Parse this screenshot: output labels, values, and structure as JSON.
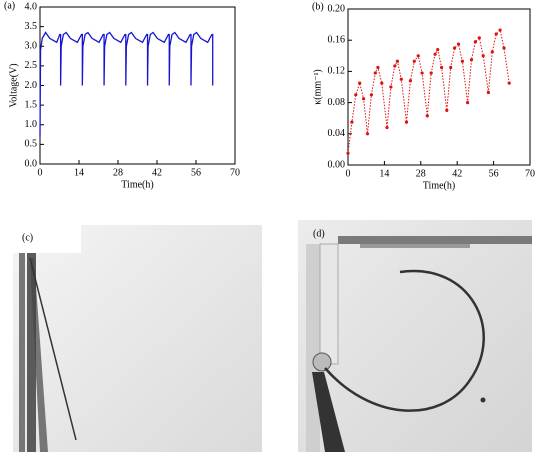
{
  "chart_data": [
    {
      "type": "line",
      "panel_label": "(a)",
      "x_label": "Time(h)",
      "y_label": "Voltage(V)",
      "xlim": [
        0,
        70
      ],
      "xticks": [
        0,
        14,
        28,
        42,
        56,
        70
      ],
      "ylim": [
        0,
        4
      ],
      "yticks": [
        {
          "value": 0,
          "label": "0.0"
        },
        0.5,
        {
          "value": 1,
          "label": "1.0"
        },
        1.5,
        {
          "value": 2,
          "label": "2.0"
        },
        2.5,
        {
          "value": 3,
          "label": "3.0"
        },
        3.5,
        {
          "value": 4,
          "label": "4.0"
        }
      ],
      "x": [
        0,
        0.2,
        0.8,
        2,
        3.5,
        6,
        7.1,
        7.4,
        7.4,
        7.6,
        8.4,
        9.4,
        10.9,
        13.4,
        14.9,
        15.2,
        15.2,
        15.4,
        16.2,
        17.2,
        18.7,
        21.2,
        22.7,
        23,
        23,
        23.2,
        24,
        25,
        26.5,
        29,
        30.5,
        30.8,
        30.8,
        31,
        31.8,
        32.8,
        34.3,
        36.8,
        38.3,
        38.6,
        38.6,
        38.8,
        39.6,
        40.6,
        42.1,
        44.6,
        46.1,
        46.4,
        46.4,
        46.6,
        47.4,
        48.4,
        49.9,
        52.4,
        53.9,
        54.2,
        54.2,
        54.4,
        55.2,
        56.2,
        57.7,
        60.2,
        61.7,
        62,
        62
      ],
      "series": [
        {
          "color": "#1515d0",
          "markers": false,
          "values": [
            0.7,
            2.9,
            3.2,
            3.35,
            3.2,
            3.1,
            3.3,
            3.3,
            2.0,
            3.0,
            3.3,
            3.35,
            3.2,
            3.1,
            3.3,
            3.3,
            2.0,
            3.0,
            3.3,
            3.35,
            3.2,
            3.1,
            3.3,
            3.3,
            2.0,
            3.0,
            3.3,
            3.35,
            3.2,
            3.1,
            3.3,
            3.3,
            2.0,
            3.0,
            3.3,
            3.35,
            3.2,
            3.1,
            3.3,
            3.3,
            2.0,
            3.0,
            3.3,
            3.35,
            3.2,
            3.1,
            3.3,
            3.3,
            2.0,
            3.0,
            3.3,
            3.35,
            3.2,
            3.1,
            3.3,
            3.3,
            2.0,
            3.0,
            3.3,
            3.35,
            3.2,
            3.1,
            3.3,
            3.3,
            2.0
          ]
        }
      ]
    },
    {
      "type": "line",
      "panel_label": "(b)",
      "x_label": "Time(h)",
      "y_label": "κ(mm⁻¹)",
      "xlim": [
        0,
        70
      ],
      "xticks": [
        0,
        14,
        28,
        42,
        56,
        70
      ],
      "ylim": [
        0,
        0.2
      ],
      "yticks": [
        {
          "value": 0,
          "label": "0.00"
        },
        0.04,
        0.08,
        0.12,
        0.16,
        {
          "value": 0.2,
          "label": "0.20"
        }
      ],
      "x": [
        0,
        1.5,
        3,
        4.5,
        6,
        7.5,
        9,
        10.5,
        11.5,
        13,
        15,
        16.5,
        18,
        19,
        20.5,
        22.5,
        24,
        25.5,
        27,
        28.5,
        30.5,
        32,
        33.5,
        34.5,
        36,
        38,
        39.5,
        41,
        42.5,
        44,
        46,
        47.5,
        49,
        50.5,
        52,
        54,
        55.5,
        57,
        58.5,
        60,
        62
      ],
      "series": [
        {
          "color": "#e01010",
          "markers": true,
          "values": [
            0.015,
            0.055,
            0.09,
            0.105,
            0.085,
            0.04,
            0.09,
            0.118,
            0.125,
            0.105,
            0.048,
            0.1,
            0.127,
            0.133,
            0.11,
            0.055,
            0.108,
            0.133,
            0.14,
            0.118,
            0.063,
            0.118,
            0.142,
            0.148,
            0.125,
            0.07,
            0.125,
            0.15,
            0.155,
            0.133,
            0.08,
            0.135,
            0.158,
            0.163,
            0.14,
            0.093,
            0.145,
            0.168,
            0.173,
            0.15,
            0.105
          ]
        }
      ]
    }
  ],
  "panels": [
    {
      "label": "(c)"
    },
    {
      "label": "(d)"
    }
  ]
}
